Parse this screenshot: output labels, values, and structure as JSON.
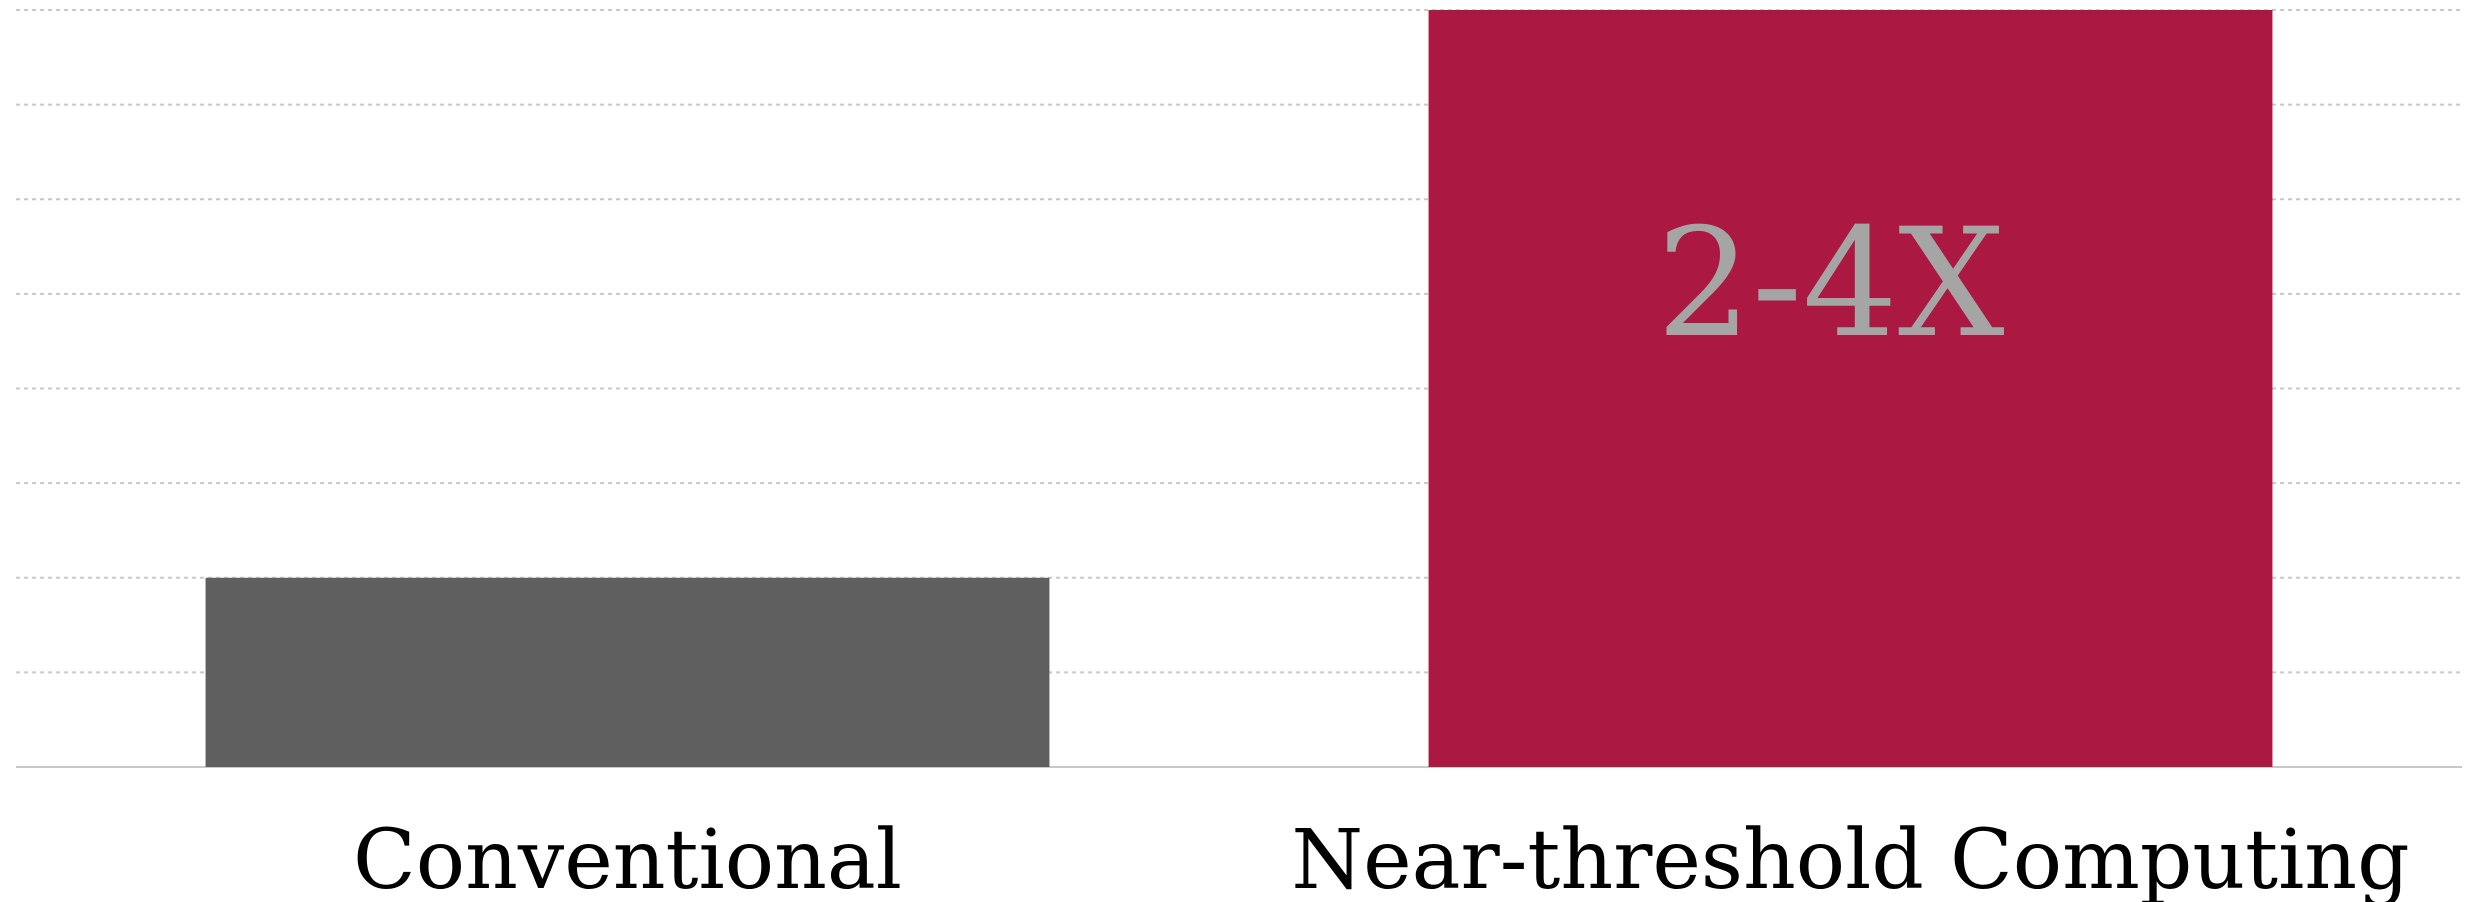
{
  "chart_data": {
    "type": "bar",
    "categories": [
      "Conventional",
      "Near-threshold Computing"
    ],
    "values": [
      2,
      8
    ],
    "data_labels": [
      "",
      "2-4X"
    ],
    "ylim": [
      0,
      8
    ],
    "yticks": [
      0,
      1,
      2,
      3,
      4,
      5,
      6,
      7,
      8
    ],
    "grid": true,
    "legend": "none",
    "bar_colors": [
      "#5f5f5f",
      "#ab1942"
    ],
    "data_label_color": "#a5a5a5",
    "title": "",
    "xlabel": "",
    "ylabel": ""
  }
}
